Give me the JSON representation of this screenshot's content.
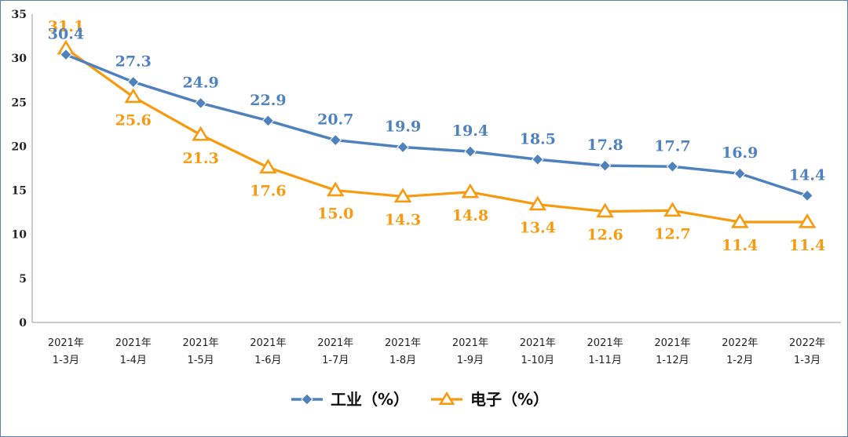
{
  "chart_data": {
    "type": "line",
    "categories": [
      [
        "2021年",
        "1-3月"
      ],
      [
        "2021年",
        "1-4月"
      ],
      [
        "2021年",
        "1-5月"
      ],
      [
        "2021年",
        "1-6月"
      ],
      [
        "2021年",
        "1-7月"
      ],
      [
        "2021年",
        "1-8月"
      ],
      [
        "2021年",
        "1-9月"
      ],
      [
        "2021年",
        "1-10月"
      ],
      [
        "2021年",
        "1-11月"
      ],
      [
        "2021年",
        "1-12月"
      ],
      [
        "2022年",
        "1-2月"
      ],
      [
        "2022年",
        "1-3月"
      ]
    ],
    "series": [
      {
        "name": "工业（%）",
        "color": "#4f81bd",
        "marker": "diamond",
        "values": [
          30.4,
          27.3,
          24.9,
          22.9,
          20.7,
          19.9,
          19.4,
          18.5,
          17.8,
          17.7,
          16.9,
          14.4
        ],
        "label_position": "above"
      },
      {
        "name": "电子（%）",
        "color": "#f79a0e",
        "marker": "triangle",
        "values": [
          31.1,
          25.6,
          21.3,
          17.6,
          15.0,
          14.3,
          14.8,
          13.4,
          12.6,
          12.7,
          11.4,
          11.4
        ],
        "label_position": "below"
      }
    ],
    "y_ticks": [
      0,
      5,
      10,
      15,
      20,
      25,
      30,
      35
    ],
    "ylim": [
      0,
      35
    ],
    "grid": false,
    "legend_position": "bottom"
  }
}
